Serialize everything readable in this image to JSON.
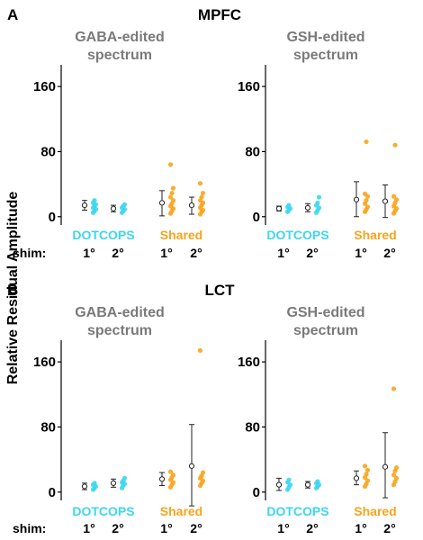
{
  "figure": {
    "ylabel": "Relative Residual Amplitude",
    "shim_label": "shim:",
    "shim_ticks": [
      "1°",
      "2°",
      "1°",
      "2°"
    ],
    "method_labels": [
      "DOTCOPS",
      "Shared"
    ]
  },
  "colors": {
    "dotcops": "#3dd6ef",
    "shared": "#f9a31b",
    "panel_title": "#7a7a7a",
    "axis": "#000000"
  },
  "chart_data": [
    {
      "panel": "A",
      "row_title": "MPFC",
      "title": "GABA-edited spectrum",
      "type": "scatter",
      "ylim": [
        -8,
        180
      ],
      "yticks": [
        0,
        80,
        160
      ],
      "categories": [
        "DOTCOPS 1°",
        "DOTCOPS 2°",
        "Shared 1°",
        "Shared 2°"
      ],
      "series": [
        {
          "method": "DOTCOPS",
          "shim": "1°",
          "mean": 14,
          "lower": 8,
          "upper": 20,
          "points": [
            5,
            7,
            9,
            11,
            13,
            15,
            17,
            20
          ]
        },
        {
          "method": "DOTCOPS",
          "shim": "2°",
          "mean": 10,
          "lower": 6,
          "upper": 14,
          "points": [
            5,
            7,
            9,
            11,
            13,
            15
          ]
        },
        {
          "method": "Shared",
          "shim": "1°",
          "mean": 17,
          "lower": 1,
          "upper": 32,
          "points": [
            4,
            7,
            10,
            13,
            16,
            20,
            24,
            29,
            35,
            64
          ]
        },
        {
          "method": "Shared",
          "shim": "2°",
          "mean": 14,
          "lower": 3,
          "upper": 24,
          "points": [
            3,
            6,
            8,
            11,
            14,
            17,
            20,
            24,
            29,
            41
          ]
        }
      ]
    },
    {
      "panel": "A",
      "row_title": "MPFC",
      "title": "GSH-edited spectrum",
      "type": "scatter",
      "ylim": [
        -8,
        180
      ],
      "yticks": [
        0,
        80,
        160
      ],
      "categories": [
        "DOTCOPS 1°",
        "DOTCOPS 2°",
        "Shared 1°",
        "Shared 2°"
      ],
      "series": [
        {
          "method": "DOTCOPS",
          "shim": "1°",
          "mean": 10,
          "lower": 7,
          "upper": 13,
          "points": [
            6,
            8,
            10,
            12,
            14
          ]
        },
        {
          "method": "DOTCOPS",
          "shim": "2°",
          "mean": 11,
          "lower": 6,
          "upper": 16,
          "points": [
            5,
            8,
            11,
            14,
            17,
            24
          ]
        },
        {
          "method": "Shared",
          "shim": "1°",
          "mean": 21,
          "lower": 0,
          "upper": 43,
          "points": [
            6,
            9,
            12,
            16,
            20,
            25,
            28,
            92
          ]
        },
        {
          "method": "Shared",
          "shim": "2°",
          "mean": 19,
          "lower": -1,
          "upper": 39,
          "points": [
            4,
            7,
            10,
            13,
            17,
            21,
            25,
            88
          ]
        }
      ]
    },
    {
      "panel": "B",
      "row_title": "LCT",
      "title": "GABA-edited spectrum",
      "type": "scatter",
      "ylim": [
        -8,
        180
      ],
      "yticks": [
        0,
        80,
        160
      ],
      "categories": [
        "DOTCOPS 1°",
        "DOTCOPS 2°",
        "Shared 1°",
        "Shared 2°"
      ],
      "series": [
        {
          "method": "DOTCOPS",
          "shim": "1°",
          "mean": 7,
          "lower": 3,
          "upper": 11,
          "points": [
            3,
            5,
            7,
            9,
            11
          ]
        },
        {
          "method": "DOTCOPS",
          "shim": "2°",
          "mean": 11,
          "lower": 6,
          "upper": 16,
          "points": [
            5,
            8,
            10,
            12,
            14,
            17
          ]
        },
        {
          "method": "Shared",
          "shim": "1°",
          "mean": 16,
          "lower": 8,
          "upper": 24,
          "points": [
            6,
            9,
            12,
            15,
            18,
            21,
            25
          ]
        },
        {
          "method": "Shared",
          "shim": "2°",
          "mean": 32,
          "lower": -17,
          "upper": 83,
          "points": [
            8,
            11,
            14,
            17,
            20,
            24,
            174
          ]
        }
      ]
    },
    {
      "panel": "B",
      "row_title": "LCT",
      "title": "GSH-edited spectrum",
      "type": "scatter",
      "ylim": [
        -8,
        180
      ],
      "yticks": [
        0,
        80,
        160
      ],
      "categories": [
        "DOTCOPS 1°",
        "DOTCOPS 2°",
        "Shared 1°",
        "Shared 2°"
      ],
      "series": [
        {
          "method": "DOTCOPS",
          "shim": "1°",
          "mean": 9,
          "lower": 2,
          "upper": 17,
          "points": [
            3,
            6,
            9,
            12,
            15
          ]
        },
        {
          "method": "DOTCOPS",
          "shim": "2°",
          "mean": 9,
          "lower": 5,
          "upper": 13,
          "points": [
            5,
            7,
            9,
            11,
            13
          ]
        },
        {
          "method": "Shared",
          "shim": "1°",
          "mean": 17,
          "lower": 9,
          "upper": 26,
          "points": [
            7,
            10,
            14,
            18,
            22,
            27,
            32
          ]
        },
        {
          "method": "Shared",
          "shim": "2°",
          "mean": 31,
          "lower": -7,
          "upper": 73,
          "points": [
            9,
            13,
            17,
            21,
            26,
            30,
            127
          ]
        }
      ]
    }
  ]
}
